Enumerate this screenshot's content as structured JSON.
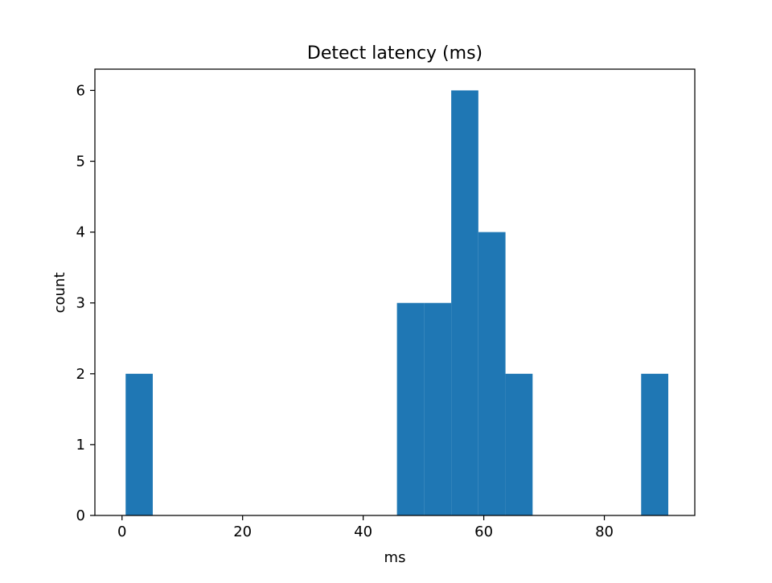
{
  "chart_data": {
    "type": "bar",
    "title": "Detect latency (ms)",
    "xlabel": "ms",
    "ylabel": "count",
    "xlim": [
      -4.5,
      95.0
    ],
    "ylim": [
      0,
      6.3
    ],
    "xticks": [
      0,
      20,
      40,
      60,
      80
    ],
    "yticks": [
      0,
      1,
      2,
      3,
      4,
      5,
      6
    ],
    "grid": false,
    "bar_color": "#1f77b4",
    "bins": [
      {
        "start": 0.6,
        "end": 5.1,
        "count": 2
      },
      {
        "start": 5.1,
        "end": 9.6,
        "count": 0
      },
      {
        "start": 9.6,
        "end": 14.1,
        "count": 0
      },
      {
        "start": 14.1,
        "end": 18.6,
        "count": 0
      },
      {
        "start": 18.6,
        "end": 23.1,
        "count": 0
      },
      {
        "start": 23.1,
        "end": 27.6,
        "count": 0
      },
      {
        "start": 27.6,
        "end": 32.1,
        "count": 0
      },
      {
        "start": 32.1,
        "end": 36.6,
        "count": 0
      },
      {
        "start": 36.6,
        "end": 41.1,
        "count": 0
      },
      {
        "start": 41.1,
        "end": 45.6,
        "count": 0
      },
      {
        "start": 45.6,
        "end": 50.1,
        "count": 3
      },
      {
        "start": 50.1,
        "end": 54.6,
        "count": 3
      },
      {
        "start": 54.6,
        "end": 59.1,
        "count": 6
      },
      {
        "start": 59.1,
        "end": 63.6,
        "count": 4
      },
      {
        "start": 63.6,
        "end": 68.1,
        "count": 2
      },
      {
        "start": 68.1,
        "end": 72.6,
        "count": 0
      },
      {
        "start": 72.6,
        "end": 77.1,
        "count": 0
      },
      {
        "start": 77.1,
        "end": 81.6,
        "count": 0
      },
      {
        "start": 81.6,
        "end": 86.1,
        "count": 0
      },
      {
        "start": 86.1,
        "end": 90.6,
        "count": 2
      }
    ]
  }
}
